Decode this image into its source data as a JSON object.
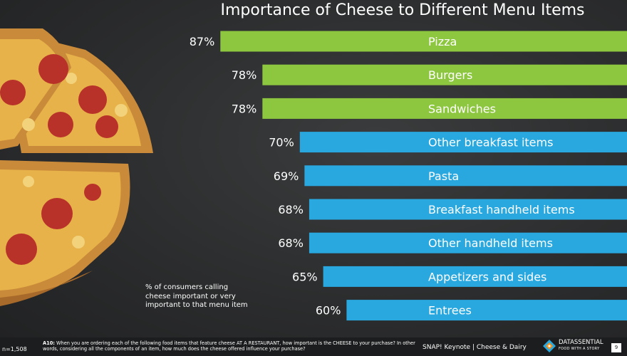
{
  "chart_data": {
    "type": "bar",
    "title": "Importance of Cheese to Different Menu Items",
    "categories": [
      "Pizza",
      "Burgers",
      "Sandwiches",
      "Other breakfast items",
      "Pasta",
      "Breakfast handheld items",
      "Other handheld items",
      "Appetizers and sides",
      "Entrees"
    ],
    "values": [
      87,
      78,
      78,
      70,
      69,
      68,
      68,
      65,
      60
    ],
    "value_labels": [
      "87%",
      "78%",
      "78%",
      "70%",
      "69%",
      "68%",
      "68%",
      "65%",
      "60%"
    ],
    "bar_colors": [
      "#8dc63f",
      "#8dc63f",
      "#8dc63f",
      "#29a8e0",
      "#29a8e0",
      "#29a8e0",
      "#29a8e0",
      "#29a8e0",
      "#29a8e0"
    ],
    "orientation": "horizontal-right-aligned",
    "xlim": [
      0,
      100
    ]
  },
  "footnote": "% of consumers calling cheese important or very important to that menu item",
  "footer": {
    "n": "n=1,508",
    "question_label": "A10:",
    "question_text": "When you are ordering each of the following food items that feature cheese AT A RESTAURANT, how important is the CHEESE to your purchase? In other words, considering all the components of an item, how much does the cheese offered influence your purchase?",
    "keynote": "SNAP! Keynote | Cheese & Dairy",
    "brand": "DATASSENTIAL",
    "tagline": "FOOD WITH A STORY",
    "page": "9"
  },
  "colors": {
    "green": "#8dc63f",
    "blue": "#29a8e0",
    "text": "#ffffff"
  },
  "image": "pepperoni-pizza-photo"
}
